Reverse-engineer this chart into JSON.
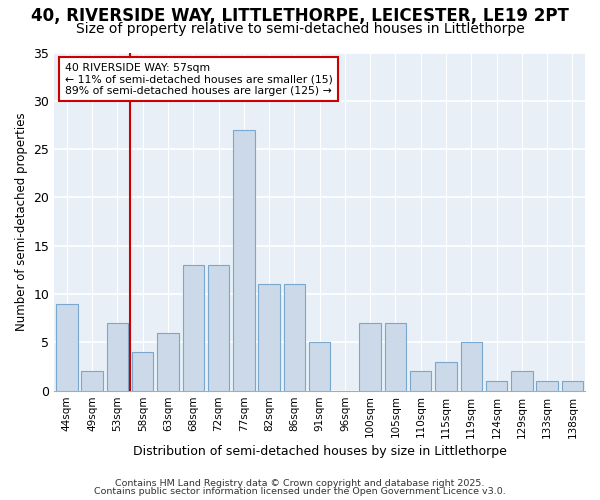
{
  "title1": "40, RIVERSIDE WAY, LITTLETHORPE, LEICESTER, LE19 2PT",
  "title2": "Size of property relative to semi-detached houses in Littlethorpe",
  "xlabel": "Distribution of semi-detached houses by size in Littlethorpe",
  "ylabel": "Number of semi-detached properties",
  "categories": [
    "44sqm",
    "49sqm",
    "53sqm",
    "58sqm",
    "63sqm",
    "68sqm",
    "72sqm",
    "77sqm",
    "82sqm",
    "86sqm",
    "91sqm",
    "96sqm",
    "100sqm",
    "105sqm",
    "110sqm",
    "115sqm",
    "119sqm",
    "124sqm",
    "129sqm",
    "133sqm",
    "138sqm"
  ],
  "values": [
    9,
    2,
    7,
    4,
    6,
    13,
    13,
    27,
    11,
    11,
    5,
    0,
    7,
    7,
    2,
    3,
    5,
    1,
    2,
    1,
    1
  ],
  "bar_color": "#ccd9e8",
  "bar_edge_color": "#7aa8cc",
  "vline_x_idx": 3,
  "property_label": "40 RIVERSIDE WAY: 57sqm",
  "annotation_line1": "← 11% of semi-detached houses are smaller (15)",
  "annotation_line2": "89% of semi-detached houses are larger (125) →",
  "annotation_box_color": "#ffffff",
  "annotation_box_edge": "#cc0000",
  "vline_color": "#cc0000",
  "ylim": [
    0,
    35
  ],
  "yticks": [
    0,
    5,
    10,
    15,
    20,
    25,
    30,
    35
  ],
  "footer1": "Contains HM Land Registry data © Crown copyright and database right 2025.",
  "footer2": "Contains public sector information licensed under the Open Government Licence v3.0.",
  "bg_color": "#e8eff7",
  "plot_bg": "#ffffff",
  "title1_fontsize": 12,
  "title2_fontsize": 10
}
